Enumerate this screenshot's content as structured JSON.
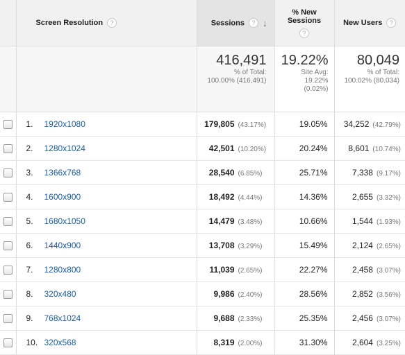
{
  "header": {
    "dimension_label": "Screen Resolution",
    "sessions_label": "Sessions",
    "new_sessions_label_line1": "% New",
    "new_sessions_label_line2": "Sessions",
    "new_users_label": "New Users",
    "help_glyph": "?",
    "sort_glyph": "↓"
  },
  "totals": {
    "sessions": {
      "value": "416,491",
      "line1": "% of Total:",
      "line2": "100.00% (416,491)"
    },
    "new_sessions": {
      "value": "19.22%",
      "line1": "Site Avg:",
      "line2": "19.22%",
      "line3": "(0.02%)"
    },
    "new_users": {
      "value": "80,049",
      "line1": "% of Total:",
      "line2": "100.02% (80,034)"
    }
  },
  "rows": [
    {
      "index": "1.",
      "resolution": "1920x1080",
      "sessions": "179,805",
      "sessions_pct": "(43.17%)",
      "new_sessions": "19.05%",
      "new_users": "34,252",
      "new_users_pct": "(42.79%)"
    },
    {
      "index": "2.",
      "resolution": "1280x1024",
      "sessions": "42,501",
      "sessions_pct": "(10.20%)",
      "new_sessions": "20.24%",
      "new_users": "8,601",
      "new_users_pct": "(10.74%)"
    },
    {
      "index": "3.",
      "resolution": "1366x768",
      "sessions": "28,540",
      "sessions_pct": "(6.85%)",
      "new_sessions": "25.71%",
      "new_users": "7,338",
      "new_users_pct": "(9.17%)"
    },
    {
      "index": "4.",
      "resolution": "1600x900",
      "sessions": "18,492",
      "sessions_pct": "(4.44%)",
      "new_sessions": "14.36%",
      "new_users": "2,655",
      "new_users_pct": "(3.32%)"
    },
    {
      "index": "5.",
      "resolution": "1680x1050",
      "sessions": "14,479",
      "sessions_pct": "(3.48%)",
      "new_sessions": "10.66%",
      "new_users": "1,544",
      "new_users_pct": "(1.93%)"
    },
    {
      "index": "6.",
      "resolution": "1440x900",
      "sessions": "13,708",
      "sessions_pct": "(3.29%)",
      "new_sessions": "15.49%",
      "new_users": "2,124",
      "new_users_pct": "(2.65%)"
    },
    {
      "index": "7.",
      "resolution": "1280x800",
      "sessions": "11,039",
      "sessions_pct": "(2.65%)",
      "new_sessions": "22.27%",
      "new_users": "2,458",
      "new_users_pct": "(3.07%)"
    },
    {
      "index": "8.",
      "resolution": "320x480",
      "sessions": "9,986",
      "sessions_pct": "(2.40%)",
      "new_sessions": "28.56%",
      "new_users": "2,852",
      "new_users_pct": "(3.56%)"
    },
    {
      "index": "9.",
      "resolution": "768x1024",
      "sessions": "9,688",
      "sessions_pct": "(2.33%)",
      "new_sessions": "25.35%",
      "new_users": "2,456",
      "new_users_pct": "(3.07%)"
    },
    {
      "index": "10.",
      "resolution": "320x568",
      "sessions": "8,319",
      "sessions_pct": "(2.00%)",
      "new_sessions": "31.30%",
      "new_users": "2,604",
      "new_users_pct": "(3.25%)"
    }
  ],
  "colors": {
    "link": "#1a5eae",
    "header_bg": "#f1f1f1",
    "sorted_col_bg": "#e4e4e4"
  }
}
